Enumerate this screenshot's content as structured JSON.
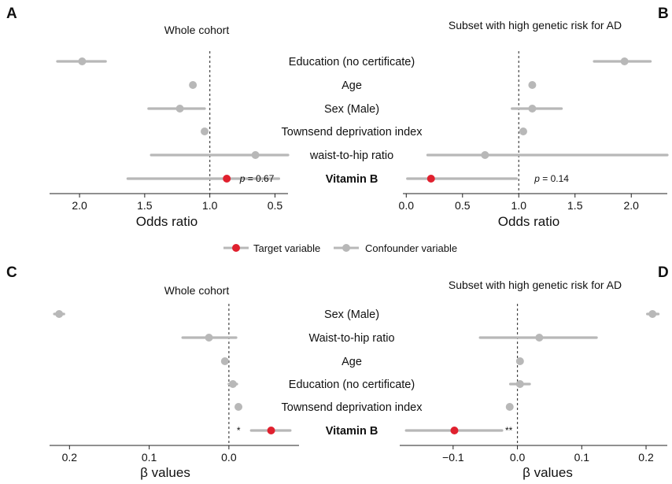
{
  "colors": {
    "target": "#e0202e",
    "confounder": "#b8b8b8",
    "axis": "#222222",
    "refline": "#444444"
  },
  "legend": {
    "target_label": "Target variable",
    "confounder_label": "Confounder variable"
  },
  "chart_data": [
    {
      "panel": "A",
      "type": "forest",
      "title": "Whole cohort",
      "xlabel": "Odds ratio",
      "x_reversed": true,
      "xlim": [
        2.23,
        0.4
      ],
      "ticks": [
        2.0,
        1.5,
        1.0,
        0.5
      ],
      "tick_labels": [
        "2.0",
        "1.5",
        "1.0",
        "0.5"
      ],
      "reference": 1.0,
      "rows": [
        {
          "label": "Education (no certificate)",
          "est": 1.98,
          "lo": 1.8,
          "hi": 2.17,
          "target": false
        },
        {
          "label": "Age",
          "est": 1.13,
          "lo": null,
          "hi": null,
          "target": false
        },
        {
          "label": "Sex (Male)",
          "est": 1.23,
          "lo": 1.04,
          "hi": 1.47,
          "target": false
        },
        {
          "label": "Townsend deprivation index",
          "est": 1.04,
          "lo": null,
          "hi": null,
          "target": false
        },
        {
          "label": "waist-to-hip ratio",
          "est": 0.65,
          "lo": 0.4,
          "hi": 1.45,
          "target": false
        },
        {
          "label": "Vitamin B",
          "est": 0.87,
          "lo": 0.47,
          "hi": 1.63,
          "target": true
        }
      ],
      "annotation": {
        "text": "= 0.67",
        "italic": "p",
        "row": 5
      }
    },
    {
      "panel": "B",
      "type": "forest",
      "title": "Subset with high genetic risk for AD",
      "xlabel": "Odds ratio",
      "x_reversed": false,
      "xlim": [
        -0.03,
        2.32
      ],
      "ticks": [
        0.0,
        0.5,
        1.0,
        1.5,
        2.0
      ],
      "tick_labels": [
        "0.0",
        "0.5",
        "1.0",
        "1.5",
        "2.0"
      ],
      "reference": 1.0,
      "rows": [
        {
          "label": "Education (no certificate)",
          "est": 1.94,
          "lo": 1.67,
          "hi": 2.17,
          "target": false
        },
        {
          "label": "Age",
          "est": 1.12,
          "lo": null,
          "hi": null,
          "target": false
        },
        {
          "label": "Sex (Male)",
          "est": 1.12,
          "lo": 0.94,
          "hi": 1.38,
          "target": false
        },
        {
          "label": "Townsend deprivation index",
          "est": 1.04,
          "lo": null,
          "hi": null,
          "target": false
        },
        {
          "label": "waist-to-hip ratio",
          "est": 0.7,
          "lo": 0.19,
          "hi": 2.32,
          "target": false
        },
        {
          "label": "Vitamin B",
          "est": 0.22,
          "lo": 0.01,
          "hi": 0.98,
          "target": true
        }
      ],
      "annotation": {
        "text": "= 0.14",
        "italic": "p",
        "row": 5
      }
    },
    {
      "panel": "C",
      "type": "forest",
      "title": "Whole cohort",
      "xlabel": "β values",
      "x_reversed": true,
      "xlim": [
        0.225,
        -0.088
      ],
      "ticks": [
        0.2,
        0.1,
        0.0
      ],
      "tick_labels": [
        "0.2",
        "0.1",
        "0.0"
      ],
      "reference": 0.0,
      "rows": [
        {
          "label": "Sex (Male)",
          "est": 0.213,
          "lo": 0.207,
          "hi": 0.219,
          "target": false
        },
        {
          "label": "Waist-to-hip ratio",
          "est": 0.025,
          "lo": -0.009,
          "hi": 0.058,
          "target": false
        },
        {
          "label": "Age",
          "est": 0.005,
          "lo": null,
          "hi": null,
          "target": false
        },
        {
          "label": "Education (no certificate)",
          "est": -0.005,
          "lo": -0.01,
          "hi": 0.0,
          "target": false
        },
        {
          "label": "Townsend deprivation index",
          "est": -0.012,
          "lo": null,
          "hi": null,
          "target": false
        },
        {
          "label": "Vitamin B",
          "est": -0.053,
          "lo": -0.077,
          "hi": -0.028,
          "target": true
        }
      ],
      "annotation": {
        "text": "*",
        "italic": "",
        "row": 5
      }
    },
    {
      "panel": "D",
      "type": "forest",
      "title": "Subset with high genetic risk for AD",
      "xlabel": "β values",
      "x_reversed": false,
      "xlim": [
        -0.183,
        0.233
      ],
      "ticks": [
        -0.1,
        0.0,
        0.1,
        0.2
      ],
      "tick_labels": [
        "−0.1",
        "0.0",
        "0.1",
        "0.2"
      ],
      "reference": 0.0,
      "rows": [
        {
          "label": "Sex (Male)",
          "est": 0.21,
          "lo": 0.202,
          "hi": 0.219,
          "target": false
        },
        {
          "label": "Waist-to-hip ratio",
          "est": 0.034,
          "lo": -0.058,
          "hi": 0.123,
          "target": false
        },
        {
          "label": "Age",
          "est": 0.004,
          "lo": null,
          "hi": null,
          "target": false
        },
        {
          "label": "Education (no certificate)",
          "est": 0.004,
          "lo": -0.011,
          "hi": 0.019,
          "target": false
        },
        {
          "label": "Townsend deprivation index",
          "est": -0.012,
          "lo": null,
          "hi": null,
          "target": false
        },
        {
          "label": "Vitamin B",
          "est": -0.098,
          "lo": -0.173,
          "hi": -0.024,
          "target": true
        }
      ],
      "annotation": {
        "text": "**",
        "italic": "",
        "row": 5
      }
    }
  ]
}
